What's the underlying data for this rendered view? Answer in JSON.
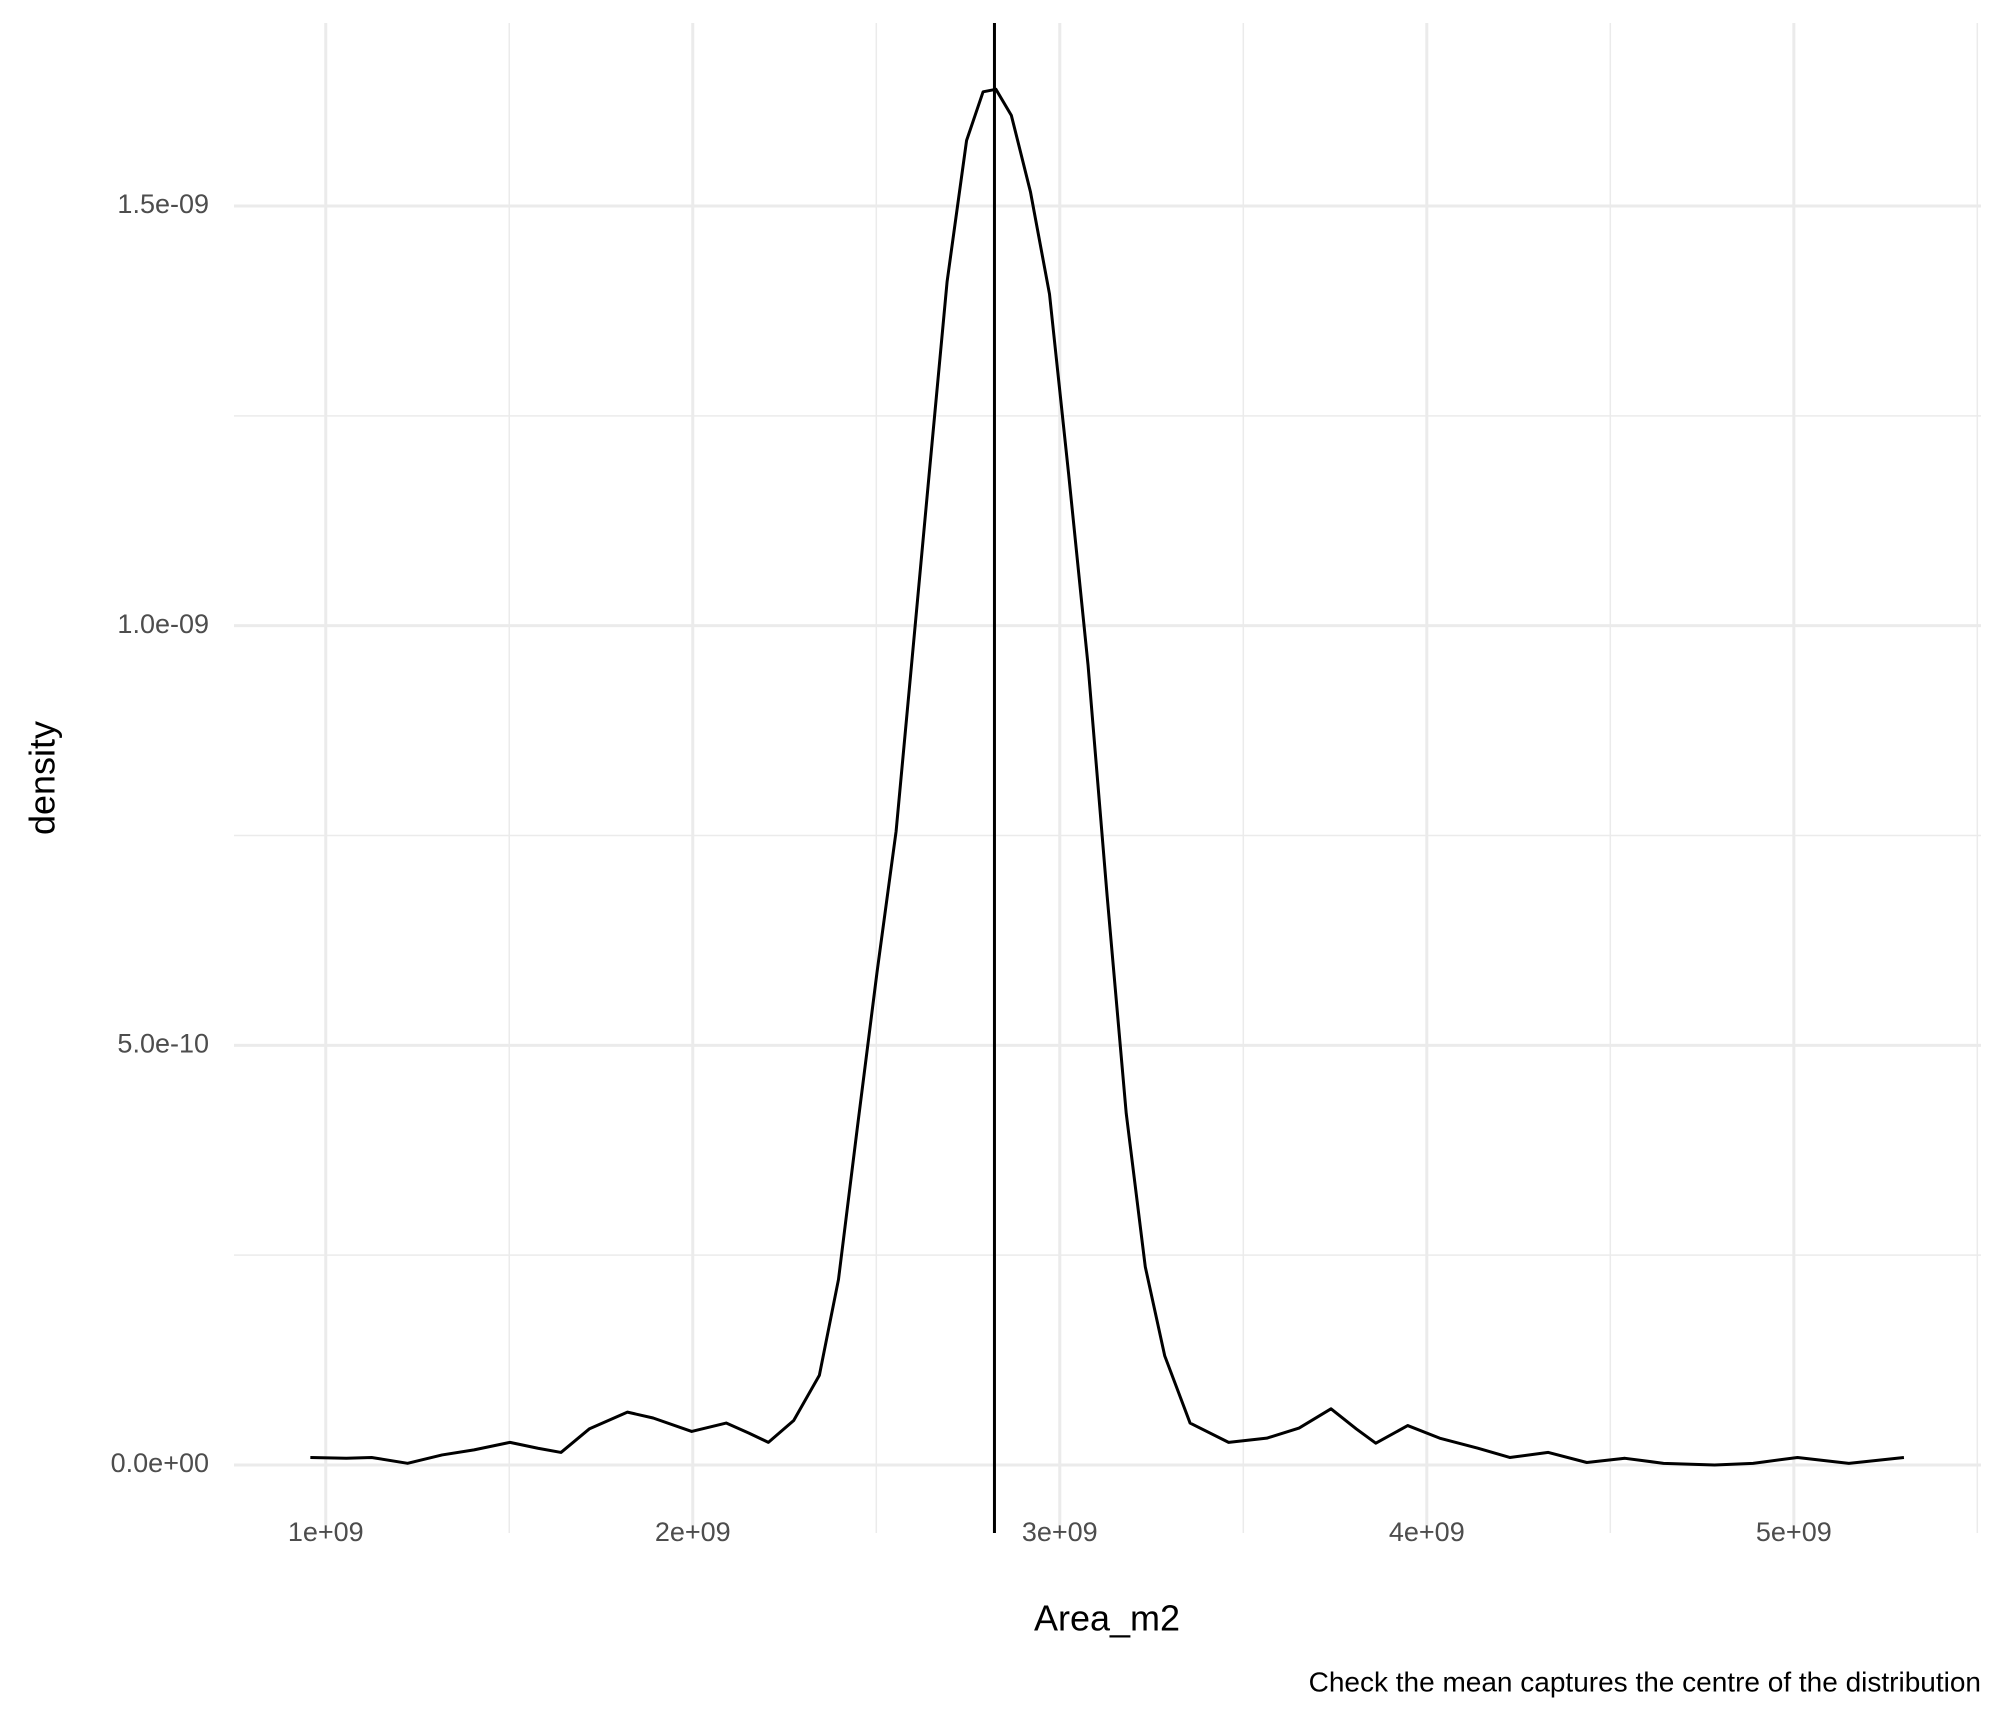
{
  "chart_data": {
    "type": "line",
    "x_label": "Area_m2",
    "y_label": "density",
    "caption": "Check the mean captures the centre of the distribution",
    "series": [
      {
        "name": "density",
        "color": "#000000",
        "x": [
          958000000.0,
          1056000000.0,
          1125000000.0,
          1223000000.0,
          1317000000.0,
          1404000000.0,
          1502000000.0,
          1578000000.0,
          1641000000.0,
          1718000000.0,
          1822000000.0,
          1892000000.0,
          1997000000.0,
          2091000000.0,
          2153000000.0,
          2206000000.0,
          2275000000.0,
          2345000000.0,
          2397000000.0,
          2449000000.0,
          2502000000.0,
          2554000000.0,
          2596000000.0,
          2641000000.0,
          2693000000.0,
          2746000000.0,
          2791000000.0,
          2826000000.0,
          2868000000.0,
          2920000000.0,
          2972000000.0,
          3024000000.0,
          3077000000.0,
          3129000000.0,
          3181000000.0,
          3233000000.0,
          3286000000.0,
          3355000000.0,
          3460000000.0,
          3564000000.0,
          3652000000.0,
          3739000000.0,
          3808000000.0,
          3861000000.0,
          3948000000.0,
          4035000000.0,
          4139000000.0,
          4226000000.0,
          4331000000.0,
          4436000000.0,
          4540000000.0,
          4645000000.0,
          4784000000.0,
          4889000000.0,
          5010000000.0,
          5150000000.0,
          5300000000.0
        ],
        "values": [
          9e-12,
          8e-12,
          9e-12,
          2e-12,
          1.2e-11,
          1.8e-11,
          2.7e-11,
          2e-11,
          1.5e-11,
          4.3e-11,
          6.3e-11,
          5.6e-11,
          4e-11,
          5e-11,
          3.8e-11,
          2.7e-11,
          5.3e-11,
          1.07e-10,
          2.21e-10,
          4.04e-10,
          5.87e-10,
          7.55e-10,
          9.53e-10,
          1.166e-09,
          1.41e-09,
          1.578e-09,
          1.636e-09,
          1.639e-09,
          1.608e-09,
          1.517e-09,
          1.395e-09,
          1.181e-09,
          9.53e-10,
          6.78e-10,
          4.19e-10,
          2.36e-10,
          1.3e-10,
          5e-11,
          2.7e-11,
          3.2e-11,
          4.4e-11,
          6.7e-11,
          4.3e-11,
          2.6e-11,
          4.7e-11,
          3.2e-11,
          2e-11,
          9e-12,
          1.5e-11,
          3e-12,
          8e-12,
          2e-12,
          0,
          2e-12,
          9e-12,
          2e-12,
          9e-12
        ]
      }
    ],
    "mean_line": 2822000000.0,
    "mean_line_color": "#000000",
    "xlim": [
      750000000.0,
      5510000000.0
    ],
    "xticks": [
      {
        "value": 1000000000.0,
        "label": "1e+09"
      },
      {
        "value": 2000000000.0,
        "label": "2e+09"
      },
      {
        "value": 3000000000.0,
        "label": "3e+09"
      },
      {
        "value": 4000000000.0,
        "label": "4e+09"
      },
      {
        "value": 5000000000.0,
        "label": "5e+09"
      }
    ],
    "xminor": [
      1500000000.0,
      2500000000.0,
      3500000000.0,
      4500000000.0,
      5500000000.0
    ],
    "ylim": [
      -8.1e-11,
      1.718e-09
    ],
    "yticks": [
      {
        "value": 0,
        "label": "0.0e+00"
      },
      {
        "value": 5e-10,
        "label": "5.0e-10"
      },
      {
        "value": 1e-09,
        "label": "1.0e-09"
      },
      {
        "value": 1.5e-09,
        "label": "1.5e-09"
      }
    ],
    "yminor": [
      2.5e-10,
      7.5e-10,
      1.25e-09
    ],
    "grid": true
  }
}
